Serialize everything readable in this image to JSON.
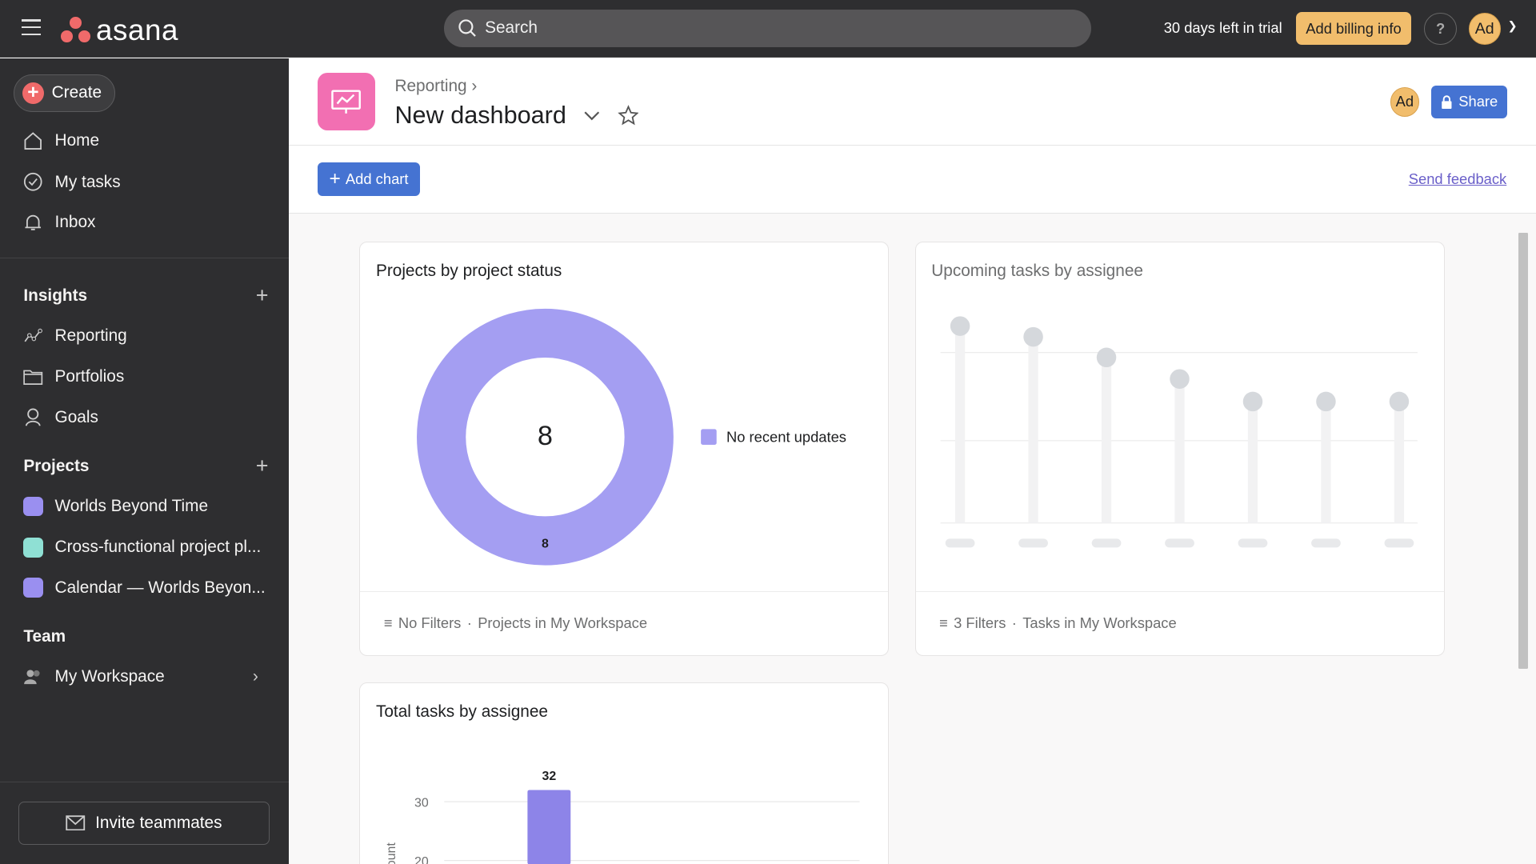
{
  "topbar": {
    "brand": "asana",
    "search_placeholder": "Search",
    "trial": "30 days left in trial",
    "billing": "Add billing info",
    "help": "?",
    "avatar": "Ad"
  },
  "sidebar": {
    "create": "Create",
    "nav": [
      {
        "label": "Home",
        "icon": "home-icon"
      },
      {
        "label": "My tasks",
        "icon": "check-circle-icon"
      },
      {
        "label": "Inbox",
        "icon": "bell-icon"
      }
    ],
    "insights": {
      "title": "Insights",
      "items": [
        {
          "label": "Reporting",
          "icon": "reporting-icon"
        },
        {
          "label": "Portfolios",
          "icon": "folder-icon"
        },
        {
          "label": "Goals",
          "icon": "goals-icon"
        }
      ]
    },
    "projects": {
      "title": "Projects",
      "items": [
        {
          "label": "Worlds Beyond Time",
          "color": "#9a8ff0"
        },
        {
          "label": "Cross-functional project pl...",
          "color": "#8fe0d4"
        },
        {
          "label": "Calendar — Worlds Beyon...",
          "color": "#9a8ff0"
        }
      ]
    },
    "team": {
      "title": "Team",
      "workspace": "My Workspace"
    },
    "invite": "Invite teammates"
  },
  "header": {
    "breadcrumb": "Reporting",
    "title": "New dashboard",
    "avatar": "Ad",
    "share": "Share",
    "add_chart": "Add chart",
    "feedback": "Send feedback"
  },
  "cards": [
    {
      "title": "Projects by project status",
      "filter": "No Filters",
      "scope": "Projects in My Workspace"
    },
    {
      "title": "Upcoming tasks by assignee",
      "filter": "3 Filters",
      "scope": "Tasks in My Workspace",
      "state": "loading"
    },
    {
      "title": "Total tasks by assignee"
    }
  ],
  "chart_data": [
    {
      "type": "pie",
      "title": "Projects by project status",
      "center_label": "8",
      "slices": [
        {
          "name": "No recent updates",
          "value": 8,
          "label": "8",
          "color": "#a49ef2"
        }
      ],
      "legend": "right"
    },
    {
      "type": "bar",
      "title": "Total tasks by assignee",
      "ylabel": "Count",
      "yticks": [
        "30",
        "20"
      ],
      "values": [
        32
      ],
      "value_labels": [
        "32"
      ],
      "color": "#8d84e8",
      "grid": true
    }
  ]
}
